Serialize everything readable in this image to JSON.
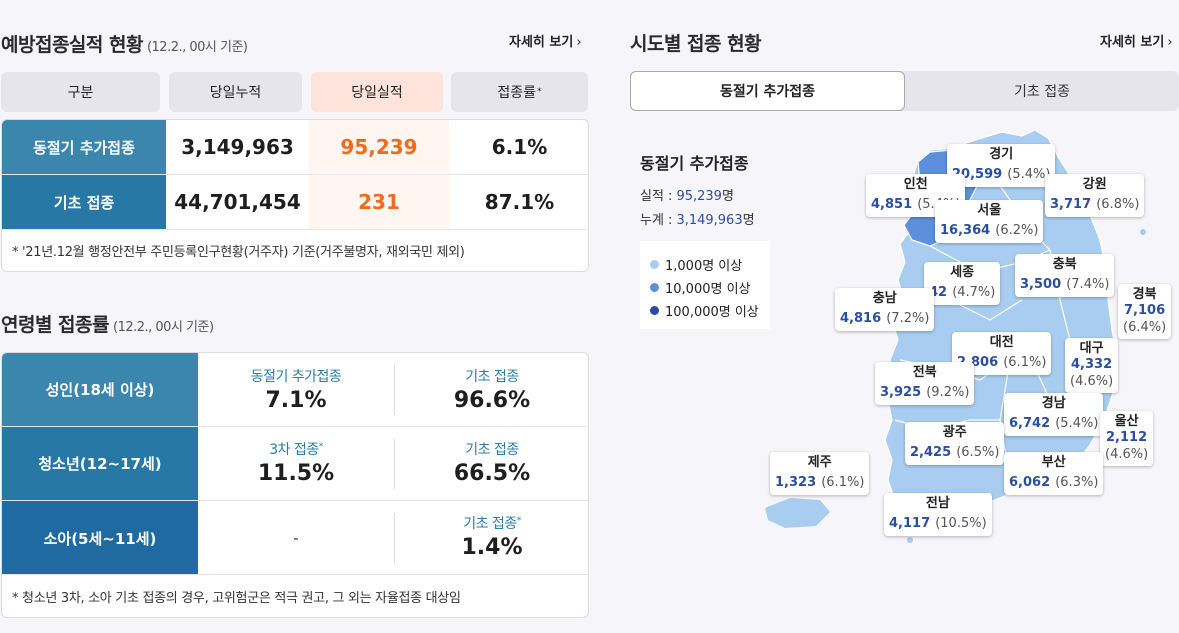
{
  "perf": {
    "title": "예방접종실적 현황",
    "subtitle": "(12.2., 00시 기준)",
    "more": "자세히 보기",
    "headers": {
      "category": "구분",
      "cumulative": "당일누적",
      "daily": "당일실적",
      "rate": "접종률"
    },
    "rows": [
      {
        "label": "동절기 추가접종",
        "cumulative": "3,149,963",
        "daily": "95,239",
        "rate": "6.1%"
      },
      {
        "label": "기초 접종",
        "cumulative": "44,701,454",
        "daily": "231",
        "rate": "87.1%"
      }
    ],
    "note": "* '21년.12월 행정안전부 주민등록인구현황(거주자) 기준(거주불명자, 재외국민 제외)"
  },
  "age": {
    "title": "연령별 접종률",
    "subtitle": "(12.2., 00시 기준)",
    "rows": [
      {
        "label": "성인(18세 이상)",
        "c1_label": "동절기 추가접종",
        "c1_value": "7.1%",
        "c2_label": "기초 접종",
        "c2_value": "96.6%"
      },
      {
        "label": "청소년(12~17세)",
        "c1_label": "3차 접종",
        "c1_value": "11.5%",
        "c2_label": "기초 접종",
        "c2_value": "66.5%"
      },
      {
        "label": "소아(5세~11세)",
        "c1_value": "-",
        "c2_label": "기초 접종",
        "c2_value": "1.4%"
      }
    ],
    "note": "* 청소년 3차, 소아 기초 접종의 경우, 고위험군은 적극 권고, 그 외는 자율접종 대상임"
  },
  "region": {
    "title": "시도별 접종 현황",
    "more": "자세히 보기",
    "tabs": [
      "동절기 추가접종",
      "기초 접종"
    ],
    "stat_title": "동절기 추가접종",
    "performance_label": "실적 :",
    "performance_value": "95,239",
    "cumulative_label": "누계 :",
    "cumulative_value": "3,149,963",
    "unit": "명",
    "legend": [
      {
        "label": "1,000명 이상",
        "color": "#a9cdf0"
      },
      {
        "label": "10,000명 이상",
        "color": "#5d8fdc"
      },
      {
        "label": "100,000명 이상",
        "color": "#2b4ba3"
      }
    ],
    "regions": [
      {
        "name": "경기",
        "value": "20,599",
        "pct": "(5.4%)"
      },
      {
        "name": "인천",
        "value": "4,851",
        "pct": "(5.4%)"
      },
      {
        "name": "강원",
        "value": "3,717",
        "pct": "(6.8%)"
      },
      {
        "name": "서울",
        "value": "16,364",
        "pct": "(6.2%)"
      },
      {
        "name": "세종",
        "value": "42",
        "pct": "(4.7%)"
      },
      {
        "name": "충북",
        "value": "3,500",
        "pct": "(7.4%)"
      },
      {
        "name": "충남",
        "value": "4,816",
        "pct": "(7.2%)"
      },
      {
        "name": "경북",
        "value": "7,106",
        "pct": "(6.4%)"
      },
      {
        "name": "대전",
        "value": "2,806",
        "pct": "(6.1%)"
      },
      {
        "name": "대구",
        "value": "4,332",
        "pct": "(4.6%)"
      },
      {
        "name": "전북",
        "value": "3,925",
        "pct": "(9.2%)"
      },
      {
        "name": "경남",
        "value": "6,742",
        "pct": "(5.4%)"
      },
      {
        "name": "울산",
        "value": "2,112",
        "pct": "(4.6%)"
      },
      {
        "name": "광주",
        "value": "2,425",
        "pct": "(6.5%)"
      },
      {
        "name": "제주",
        "value": "1,323",
        "pct": "(6.1%)"
      },
      {
        "name": "부산",
        "value": "6,062",
        "pct": "(6.3%)"
      },
      {
        "name": "전남",
        "value": "4,117",
        "pct": "(10.5%)"
      }
    ]
  }
}
